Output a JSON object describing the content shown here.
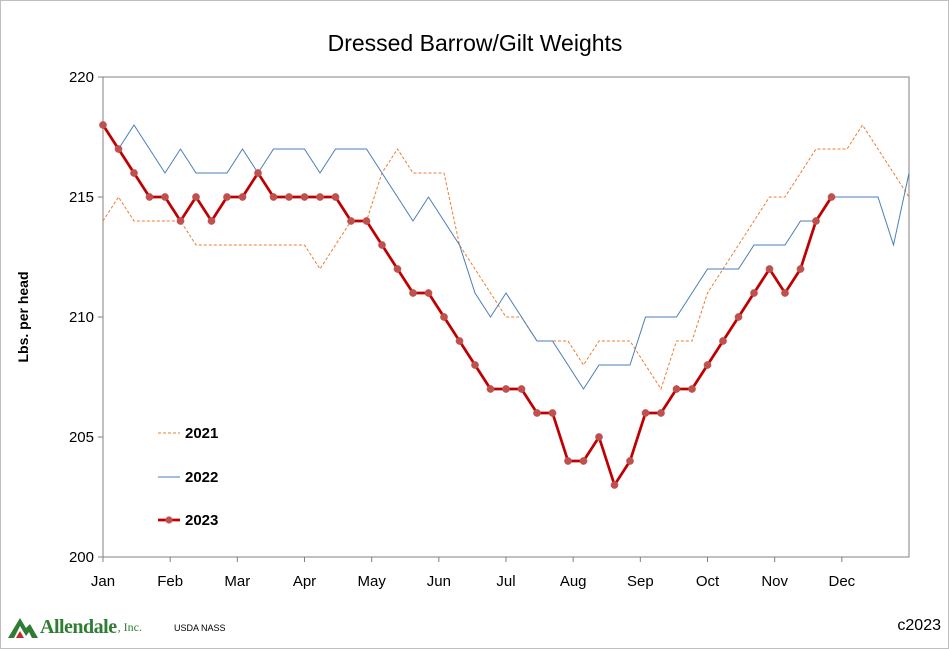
{
  "chart_data": {
    "type": "line",
    "title": "Dressed Barrow/Gilt Weights",
    "ylabel": "Lbs. per head",
    "xlabel": "",
    "ylim": [
      200,
      220
    ],
    "yticks": [
      200,
      205,
      210,
      215,
      220
    ],
    "xticks": [
      "Jan",
      "Feb",
      "Mar",
      "Apr",
      "May",
      "Jun",
      "Jul",
      "Aug",
      "Sep",
      "Oct",
      "Nov",
      "Dec"
    ],
    "grid": false,
    "legend_position": "bottom-left",
    "weeks_per_year": 53,
    "series": [
      {
        "name": "2021",
        "color": "#ed7d31",
        "style": "dashed",
        "values": [
          214,
          215,
          214,
          214,
          214,
          214,
          213,
          213,
          213,
          213,
          213,
          213,
          213,
          213,
          212,
          213,
          214,
          214,
          216,
          217,
          216,
          216,
          216,
          213,
          212,
          211,
          210,
          210,
          209,
          209,
          209,
          208,
          209,
          209,
          209,
          208,
          207,
          209,
          209,
          211,
          212,
          213,
          214,
          215,
          215,
          216,
          217,
          217,
          217,
          218,
          217,
          216,
          215
        ]
      },
      {
        "name": "2022",
        "color": "#4a7ebb",
        "style": "solid",
        "values": [
          218,
          217,
          218,
          217,
          216,
          217,
          216,
          216,
          216,
          217,
          216,
          217,
          217,
          217,
          216,
          217,
          217,
          217,
          216,
          215,
          214,
          215,
          214,
          213,
          211,
          210,
          211,
          210,
          209,
          209,
          208,
          207,
          208,
          208,
          208,
          210,
          210,
          210,
          211,
          212,
          212,
          212,
          213,
          213,
          213,
          214,
          214,
          215,
          215,
          215,
          215,
          213,
          216
        ]
      },
      {
        "name": "2023",
        "color": "#c00000",
        "marker_color": "#c0504d",
        "style": "solid-markers",
        "values": [
          218,
          217,
          216,
          215,
          215,
          214,
          215,
          214,
          215,
          215,
          216,
          215,
          215,
          215,
          215,
          215,
          214,
          214,
          213,
          212,
          211,
          211,
          210,
          209,
          208,
          207,
          207,
          207,
          206,
          206,
          204,
          204,
          205,
          203,
          204,
          206,
          206,
          207,
          207,
          208,
          209,
          210,
          211,
          212,
          211,
          212,
          214,
          215
        ]
      }
    ]
  },
  "footer": {
    "logo_text": "Allendale",
    "logo_suffix": ", Inc.",
    "source": "USDA NASS",
    "copyright": "c2023"
  }
}
